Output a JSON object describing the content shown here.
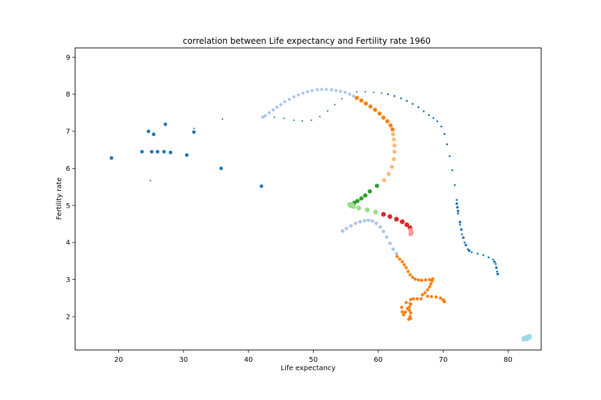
{
  "chart_data": {
    "type": "scatter",
    "title": "correlation between Life expectancy and Fertility rate 1960",
    "xlabel": "Life expectancy",
    "ylabel": "Fertility rate",
    "xlim": [
      13.3,
      85.1
    ],
    "ylim": [
      1.1,
      9.25
    ],
    "xticks": [
      20,
      30,
      40,
      50,
      60,
      70,
      80
    ],
    "yticks": [
      2,
      3,
      4,
      5,
      6,
      7,
      8,
      9
    ],
    "grid": false,
    "legend": "none",
    "colors": {
      "dark_blue": "#1f77b4",
      "light_blue": "#aec7e8",
      "orange": "#ff7f0e",
      "light_orange": "#ffbb78",
      "green": "#2ca02c",
      "light_green": "#98df8a",
      "red": "#d62728",
      "pink": "#ff9896",
      "cyan": "#9edae5"
    },
    "series": [
      {
        "color": "#1f77b4",
        "size": 2.6,
        "points": [
          [
            18.9,
            6.28
          ],
          [
            23.6,
            6.45
          ],
          [
            25.1,
            6.45
          ],
          [
            26.0,
            6.45
          ],
          [
            27.0,
            6.45
          ],
          [
            28.0,
            6.43
          ],
          [
            30.5,
            6.36
          ],
          [
            35.8,
            6.0
          ],
          [
            42.0,
            5.52
          ],
          [
            24.6,
            7.0
          ],
          [
            25.4,
            6.92
          ],
          [
            27.2,
            7.19
          ],
          [
            31.6,
            6.98
          ]
        ]
      },
      {
        "color": "#1f77b4",
        "size": 1.1,
        "points": [
          [
            24.9,
            5.67
          ],
          [
            31.6,
            7.08
          ],
          [
            36.0,
            7.33
          ],
          [
            42.6,
            7.4
          ],
          [
            44.0,
            7.38
          ],
          [
            45.5,
            7.35
          ],
          [
            47.0,
            7.3
          ],
          [
            48.3,
            7.28
          ],
          [
            49.7,
            7.3
          ],
          [
            51.0,
            7.4
          ],
          [
            52.2,
            7.55
          ],
          [
            53.3,
            7.72
          ],
          [
            54.4,
            7.88
          ],
          [
            55.5,
            8.0
          ],
          [
            56.7,
            8.06
          ],
          [
            58.0,
            8.07
          ],
          [
            59.3,
            8.05
          ],
          [
            60.5,
            8.03
          ]
        ]
      },
      {
        "color": "#1f77b4",
        "size": 1.4,
        "points": [
          [
            61.5,
            8.0
          ],
          [
            62.5,
            7.95
          ],
          [
            63.5,
            7.89
          ],
          [
            64.4,
            7.82
          ],
          [
            65.3,
            7.74
          ],
          [
            66.2,
            7.65
          ],
          [
            67.0,
            7.54
          ],
          [
            67.8,
            7.44
          ],
          [
            68.5,
            7.36
          ],
          [
            69.1,
            7.27
          ],
          [
            69.7,
            7.13
          ],
          [
            70.2,
            6.93
          ],
          [
            70.6,
            6.65
          ],
          [
            71.0,
            6.33
          ],
          [
            71.4,
            5.95
          ],
          [
            71.8,
            5.55
          ],
          [
            72.1,
            5.15
          ],
          [
            72.3,
            4.78
          ],
          [
            72.6,
            4.48
          ],
          [
            72.9,
            4.22
          ],
          [
            73.3,
            4.0
          ],
          [
            73.8,
            3.82
          ],
          [
            74.4,
            3.74
          ],
          [
            75.3,
            3.7
          ],
          [
            76.2,
            3.66
          ],
          [
            77.0,
            3.6
          ],
          [
            77.7,
            3.54
          ],
          [
            78.1,
            3.42
          ],
          [
            78.3,
            3.22
          ]
        ]
      },
      {
        "color": "#1f77b4",
        "size": 1.9,
        "points": [
          [
            72.1,
            5.05
          ],
          [
            72.2,
            4.95
          ],
          [
            72.3,
            4.85
          ],
          [
            72.6,
            4.55
          ],
          [
            72.8,
            4.35
          ],
          [
            73.1,
            4.13
          ],
          [
            73.5,
            3.93
          ],
          [
            74.0,
            3.78
          ],
          [
            77.9,
            3.48
          ],
          [
            78.2,
            3.32
          ],
          [
            78.4,
            3.15
          ]
        ]
      },
      {
        "color": "#aec7e8",
        "size": 2.3,
        "points": [
          [
            42.2,
            7.38
          ],
          [
            42.6,
            7.42
          ],
          [
            43.2,
            7.5
          ],
          [
            43.8,
            7.58
          ],
          [
            44.4,
            7.65
          ],
          [
            45.0,
            7.72
          ],
          [
            45.6,
            7.8
          ],
          [
            46.3,
            7.86
          ],
          [
            47.0,
            7.93
          ],
          [
            47.7,
            7.98
          ],
          [
            48.4,
            8.03
          ],
          [
            49.1,
            8.07
          ],
          [
            49.8,
            8.1
          ],
          [
            50.6,
            8.12
          ],
          [
            51.3,
            8.13
          ],
          [
            52.0,
            8.13
          ],
          [
            52.8,
            8.12
          ],
          [
            53.5,
            8.1
          ],
          [
            54.2,
            8.08
          ],
          [
            54.9,
            8.05
          ],
          [
            55.6,
            8.0
          ],
          [
            56.2,
            7.95
          ]
        ]
      },
      {
        "color": "#aec7e8",
        "size": 2.6,
        "points": [
          [
            54.5,
            4.31
          ],
          [
            55.1,
            4.38
          ],
          [
            55.8,
            4.45
          ],
          [
            56.5,
            4.52
          ],
          [
            57.2,
            4.56
          ],
          [
            57.9,
            4.59
          ],
          [
            58.5,
            4.6
          ],
          [
            59.1,
            4.58
          ],
          [
            59.7,
            4.52
          ],
          [
            60.3,
            4.42
          ],
          [
            60.8,
            4.3
          ],
          [
            61.3,
            4.15
          ],
          [
            61.8,
            3.98
          ],
          [
            62.3,
            3.82
          ],
          [
            62.8,
            3.7
          ]
        ]
      },
      {
        "color": "#ff7f0e",
        "size": 3.0,
        "points": [
          [
            56.7,
            7.9
          ],
          [
            57.4,
            7.83
          ],
          [
            58.1,
            7.75
          ],
          [
            58.8,
            7.67
          ],
          [
            59.5,
            7.58
          ],
          [
            60.2,
            7.48
          ],
          [
            60.8,
            7.37
          ],
          [
            61.4,
            7.27
          ],
          [
            61.9,
            7.16
          ],
          [
            62.2,
            7.05
          ]
        ]
      },
      {
        "color": "#ffbb78",
        "size": 3.0,
        "points": [
          [
            62.3,
            6.92
          ],
          [
            62.4,
            6.78
          ],
          [
            62.5,
            6.62
          ],
          [
            62.5,
            6.45
          ],
          [
            62.4,
            6.25
          ],
          [
            62.1,
            6.04
          ],
          [
            61.6,
            5.85
          ],
          [
            60.9,
            5.68
          ]
        ]
      },
      {
        "color": "#2ca02c",
        "size": 3.1,
        "points": [
          [
            59.8,
            5.53
          ],
          [
            58.7,
            5.38
          ],
          [
            58.0,
            5.27
          ],
          [
            57.4,
            5.19
          ],
          [
            56.8,
            5.12
          ],
          [
            56.3,
            5.07
          ]
        ]
      },
      {
        "color": "#98df8a",
        "size": 3.5,
        "points": [
          [
            55.6,
            5.02
          ],
          [
            55.8,
            4.99
          ],
          [
            56.0,
            5.0
          ],
          [
            56.2,
            4.97
          ],
          [
            55.9,
            5.03
          ],
          [
            57.0,
            4.93
          ],
          [
            58.3,
            4.88
          ],
          [
            59.6,
            4.82
          ]
        ]
      },
      {
        "color": "#d62728",
        "size": 3.4,
        "points": [
          [
            60.8,
            4.76
          ],
          [
            61.8,
            4.7
          ],
          [
            62.8,
            4.63
          ],
          [
            63.7,
            4.56
          ],
          [
            64.4,
            4.48
          ],
          [
            64.9,
            4.4
          ]
        ]
      },
      {
        "color": "#ff9896",
        "size": 3.4,
        "points": [
          [
            65.0,
            4.33
          ],
          [
            65.1,
            4.27
          ],
          [
            65.0,
            4.23
          ]
        ]
      },
      {
        "color": "#ff7f0e",
        "size": 2.3,
        "points": [
          [
            62.9,
            3.62
          ],
          [
            63.3,
            3.55
          ],
          [
            63.7,
            3.48
          ],
          [
            64.0,
            3.4
          ],
          [
            64.3,
            3.32
          ],
          [
            64.6,
            3.22
          ],
          [
            64.9,
            3.13
          ],
          [
            65.3,
            3.06
          ],
          [
            65.7,
            3.01
          ],
          [
            66.2,
            2.99
          ],
          [
            66.7,
            2.98
          ],
          [
            67.3,
            2.99
          ],
          [
            67.9,
            3.0
          ],
          [
            68.4,
            3.02
          ],
          [
            68.3,
            2.96
          ],
          [
            68.1,
            2.88
          ],
          [
            67.9,
            2.8
          ],
          [
            67.6,
            2.72
          ],
          [
            67.2,
            2.64
          ],
          [
            66.8,
            2.59
          ],
          [
            67.6,
            2.55
          ],
          [
            68.2,
            2.54
          ],
          [
            68.9,
            2.53
          ],
          [
            69.6,
            2.5
          ],
          [
            70.0,
            2.45
          ],
          [
            70.2,
            2.4
          ],
          [
            70.1,
            2.43
          ],
          [
            66.6,
            2.48
          ],
          [
            66.0,
            2.48
          ],
          [
            65.4,
            2.48
          ],
          [
            65.0,
            2.46
          ],
          [
            64.9,
            2.35
          ],
          [
            64.8,
            2.26
          ],
          [
            64.8,
            2.17
          ],
          [
            65.0,
            2.1
          ],
          [
            64.9,
            2.0
          ],
          [
            64.7,
            1.93
          ],
          [
            65.0,
            1.95
          ],
          [
            64.5,
            2.22
          ],
          [
            64.2,
            2.12
          ],
          [
            63.9,
            2.05
          ],
          [
            63.7,
            2.13
          ],
          [
            63.6,
            2.25
          ],
          [
            64.3,
            2.38
          ],
          [
            65.0,
            2.34
          ]
        ]
      },
      {
        "color": "#9edae5",
        "size": 3.4,
        "points": [
          [
            82.4,
            1.39
          ],
          [
            82.6,
            1.4
          ],
          [
            82.8,
            1.42
          ],
          [
            83.0,
            1.44
          ],
          [
            83.2,
            1.45
          ],
          [
            83.3,
            1.47
          ],
          [
            83.0,
            1.41
          ],
          [
            82.7,
            1.43
          ],
          [
            83.1,
            1.46
          ],
          [
            82.5,
            1.42
          ],
          [
            82.9,
            1.4
          ],
          [
            83.3,
            1.44
          ]
        ]
      }
    ]
  }
}
